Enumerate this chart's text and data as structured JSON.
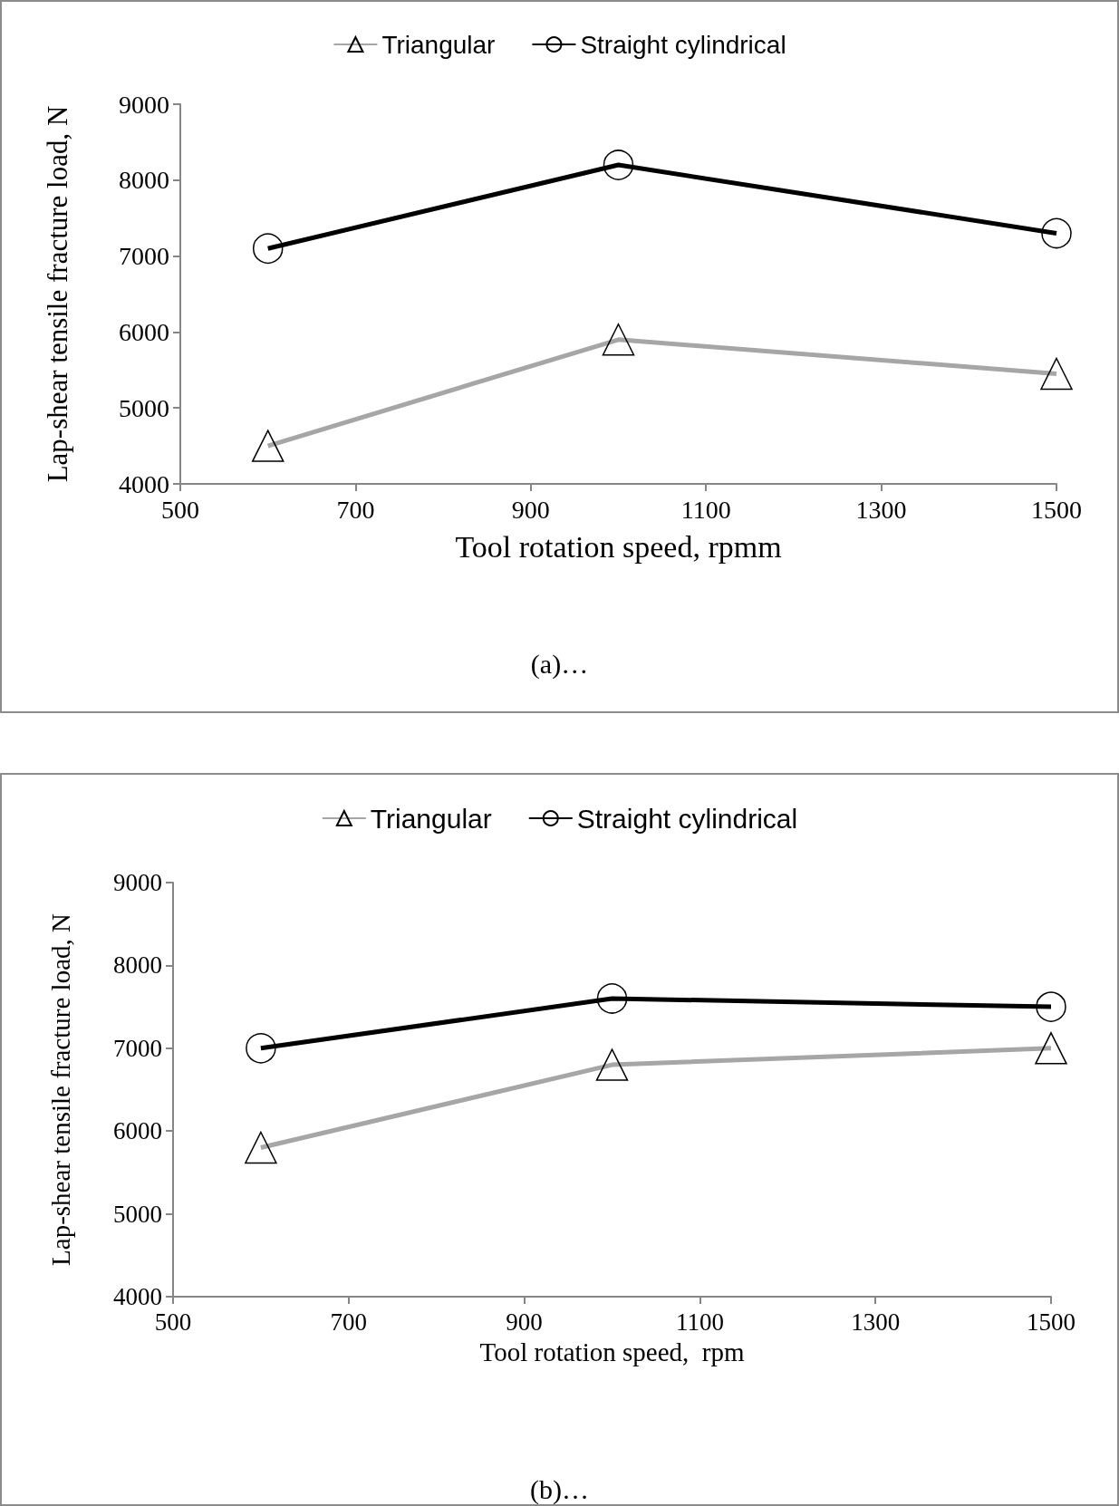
{
  "chart_data": [
    {
      "type": "line",
      "xlabel": "Tool rotation speed, rpmm",
      "ylabel": "Lap-shear tensile fracture load, N",
      "x": [
        600,
        1000,
        1500
      ],
      "series": [
        {
          "name": "Triangular",
          "color": "#a6a6a6",
          "marker": "triangle",
          "values": [
            4500,
            5900,
            5450
          ]
        },
        {
          "name": "Straight cylindrical",
          "color": "#000000",
          "marker": "circle",
          "values": [
            7100,
            8200,
            7300
          ]
        }
      ],
      "xlim": [
        500,
        1500
      ],
      "xticks": [
        500,
        700,
        900,
        1100,
        1300,
        1500
      ],
      "ylim": [
        4000,
        9000
      ],
      "yticks": [
        4000,
        5000,
        6000,
        7000,
        8000,
        9000
      ],
      "grid": false,
      "legend": "top",
      "annotations": [
        "(a)…"
      ]
    },
    {
      "type": "line",
      "xlabel": "Tool rotation speed,  rpm",
      "ylabel": "Lap-shear tensile fracture load, N",
      "x": [
        600,
        1000,
        1500
      ],
      "series": [
        {
          "name": "Triangular",
          "color": "#a6a6a6",
          "marker": "triangle",
          "values": [
            5800,
            6800,
            7000
          ]
        },
        {
          "name": "Straight cylindrical",
          "color": "#000000",
          "marker": "circle",
          "values": [
            7000,
            7600,
            7500
          ]
        }
      ],
      "xlim": [
        500,
        1500
      ],
      "xticks": [
        500,
        700,
        900,
        1100,
        1300,
        1500
      ],
      "ylim": [
        4000,
        9000
      ],
      "yticks": [
        4000,
        5000,
        6000,
        7000,
        8000,
        9000
      ],
      "grid": false,
      "legend": "top",
      "annotations": [
        "(b)…"
      ]
    }
  ]
}
